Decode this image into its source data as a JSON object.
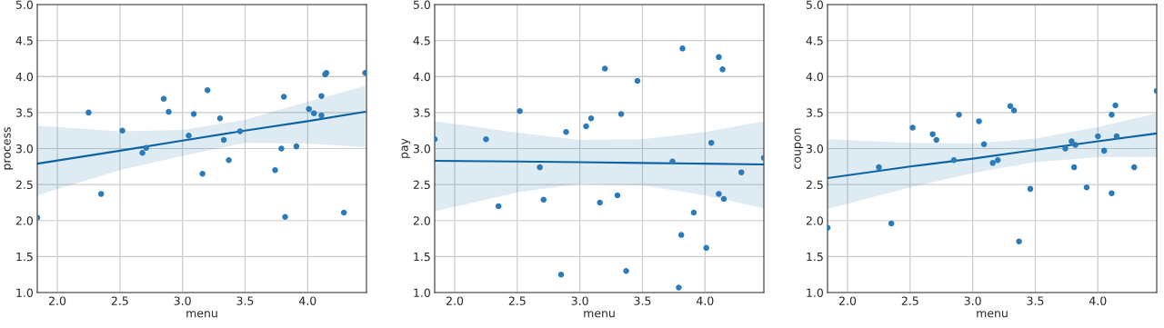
{
  "chart_data": [
    {
      "type": "scatter",
      "xlabel": "menu",
      "ylabel": "process",
      "xlim": [
        1.84,
        4.47
      ],
      "ylim": [
        1,
        5
      ],
      "grid": true,
      "xticks": [
        {
          "value": 2,
          "label": "2.0"
        },
        {
          "value": 2.5,
          "label": "2.5"
        },
        {
          "value": 3,
          "label": "3.0"
        },
        {
          "value": 3.5,
          "label": "3.5"
        },
        {
          "value": 4,
          "label": "4.0"
        }
      ],
      "yticks": [
        {
          "value": 1,
          "label": "1.0"
        },
        {
          "value": 1.5,
          "label": "1.5"
        },
        {
          "value": 2,
          "label": "2.0"
        },
        {
          "value": 2.5,
          "label": "2.5"
        },
        {
          "value": 3,
          "label": "3.0"
        },
        {
          "value": 3.5,
          "label": "3.5"
        },
        {
          "value": 4,
          "label": "4.0"
        },
        {
          "value": 4.5,
          "label": "4.5"
        },
        {
          "value": 5,
          "label": "5.0"
        }
      ],
      "series": [
        {
          "marker": "circle",
          "color": "#2b7bba",
          "x": [
            1.84,
            2.25,
            2.35,
            2.52,
            2.68,
            2.71,
            2.85,
            2.89,
            3.05,
            3.09,
            3.16,
            3.2,
            3.3,
            3.33,
            3.37,
            3.46,
            3.74,
            3.79,
            3.81,
            3.82,
            3.91,
            4.01,
            4.05,
            4.11,
            4.11,
            4.14,
            4.15,
            4.29,
            4.46
          ],
          "values": [
            2.04,
            3.5,
            2.37,
            3.25,
            2.94,
            3.01,
            3.69,
            3.51,
            3.18,
            3.48,
            2.65,
            3.81,
            3.42,
            3.12,
            2.84,
            3.24,
            2.7,
            3.0,
            3.72,
            2.05,
            3.03,
            3.55,
            3.49,
            3.73,
            3.46,
            4.03,
            4.05,
            2.11,
            4.05
          ]
        },
        {
          "type": "line",
          "color": "#0a64a4",
          "x": [
            1.84,
            2.5,
            3.0,
            3.5,
            4.0,
            4.46
          ],
          "values": [
            2.79,
            2.97,
            3.11,
            3.25,
            3.38,
            3.51
          ],
          "lower": [
            2.35,
            2.7,
            2.9,
            3.08,
            3.07,
            3.02
          ],
          "upper": [
            3.32,
            3.24,
            3.26,
            3.4,
            3.65,
            3.87
          ]
        }
      ]
    },
    {
      "type": "scatter",
      "xlabel": "menu",
      "ylabel": "pay",
      "xlim": [
        1.84,
        4.47
      ],
      "ylim": [
        1,
        5
      ],
      "grid": true,
      "xticks": [
        {
          "value": 2,
          "label": "2.0"
        },
        {
          "value": 2.5,
          "label": "2.5"
        },
        {
          "value": 3,
          "label": "3.0"
        },
        {
          "value": 3.5,
          "label": "3.5"
        },
        {
          "value": 4,
          "label": "4.0"
        }
      ],
      "yticks": [
        {
          "value": 1,
          "label": "1.0"
        },
        {
          "value": 1.5,
          "label": "1.5"
        },
        {
          "value": 2,
          "label": "2.0"
        },
        {
          "value": 2.5,
          "label": "2.5"
        },
        {
          "value": 3,
          "label": "3.0"
        },
        {
          "value": 3.5,
          "label": "3.5"
        },
        {
          "value": 4,
          "label": "4.0"
        },
        {
          "value": 4.5,
          "label": "4.5"
        },
        {
          "value": 5,
          "label": "5.0"
        }
      ],
      "series": [
        {
          "marker": "circle",
          "color": "#2b7bba",
          "x": [
            1.84,
            2.25,
            2.35,
            2.52,
            2.68,
            2.71,
            2.85,
            2.89,
            3.05,
            3.09,
            3.16,
            3.2,
            3.3,
            3.33,
            3.37,
            3.46,
            3.74,
            3.79,
            3.81,
            3.82,
            3.91,
            4.01,
            4.05,
            4.11,
            4.11,
            4.14,
            4.15,
            4.29,
            4.47
          ],
          "values": [
            3.13,
            3.13,
            2.2,
            3.52,
            2.74,
            2.29,
            1.25,
            3.23,
            3.31,
            3.42,
            2.25,
            4.11,
            2.35,
            3.48,
            1.3,
            3.94,
            2.82,
            1.07,
            1.8,
            4.39,
            2.11,
            1.62,
            3.08,
            4.27,
            2.37,
            4.1,
            2.3,
            2.67,
            2.87
          ]
        },
        {
          "type": "line",
          "color": "#0a64a4",
          "x": [
            1.84,
            2.5,
            3.0,
            3.5,
            4.0,
            4.47
          ],
          "values": [
            2.83,
            2.82,
            2.81,
            2.8,
            2.79,
            2.78
          ],
          "lower": [
            2.13,
            2.39,
            2.51,
            2.49,
            2.35,
            2.17
          ],
          "upper": [
            3.38,
            3.22,
            3.12,
            3.13,
            3.23,
            3.38
          ]
        }
      ]
    },
    {
      "type": "scatter",
      "xlabel": "menu",
      "ylabel": "coupon",
      "xlim": [
        1.84,
        4.47
      ],
      "ylim": [
        1,
        5
      ],
      "grid": true,
      "xticks": [
        {
          "value": 2,
          "label": "2.0"
        },
        {
          "value": 2.5,
          "label": "2.5"
        },
        {
          "value": 3,
          "label": "3.0"
        },
        {
          "value": 3.5,
          "label": "3.5"
        },
        {
          "value": 4,
          "label": "4.0"
        }
      ],
      "yticks": [
        {
          "value": 1,
          "label": "1.0"
        },
        {
          "value": 1.5,
          "label": "1.5"
        },
        {
          "value": 2,
          "label": "2.0"
        },
        {
          "value": 2.5,
          "label": "2.5"
        },
        {
          "value": 3,
          "label": "3.0"
        },
        {
          "value": 3.5,
          "label": "3.5"
        },
        {
          "value": 4,
          "label": "4.0"
        },
        {
          "value": 4.5,
          "label": "4.5"
        },
        {
          "value": 5,
          "label": "5.0"
        }
      ],
      "series": [
        {
          "marker": "circle",
          "color": "#2b7bba",
          "x": [
            1.84,
            2.25,
            2.35,
            2.52,
            2.68,
            2.71,
            2.85,
            2.89,
            3.05,
            3.09,
            3.16,
            3.2,
            3.3,
            3.33,
            3.37,
            3.46,
            3.74,
            3.79,
            3.81,
            3.82,
            3.91,
            4.0,
            4.05,
            4.11,
            4.11,
            4.14,
            4.15,
            4.29,
            4.47
          ],
          "values": [
            1.9,
            2.74,
            1.96,
            3.29,
            3.2,
            3.12,
            2.84,
            3.47,
            3.38,
            3.06,
            2.8,
            2.84,
            3.59,
            3.53,
            1.71,
            2.44,
            3.0,
            3.1,
            2.74,
            3.05,
            2.46,
            3.17,
            2.97,
            3.47,
            2.38,
            3.6,
            3.17,
            2.74,
            3.8
          ]
        },
        {
          "type": "line",
          "color": "#0a64a4",
          "x": [
            1.84,
            2.5,
            3.0,
            3.5,
            4.0,
            4.47
          ],
          "values": [
            2.59,
            2.75,
            2.86,
            2.98,
            3.1,
            3.21
          ],
          "lower": [
            2.16,
            2.46,
            2.66,
            2.81,
            2.88,
            2.88
          ],
          "upper": [
            3.13,
            3.08,
            3.07,
            3.14,
            3.3,
            3.49
          ]
        }
      ]
    }
  ]
}
